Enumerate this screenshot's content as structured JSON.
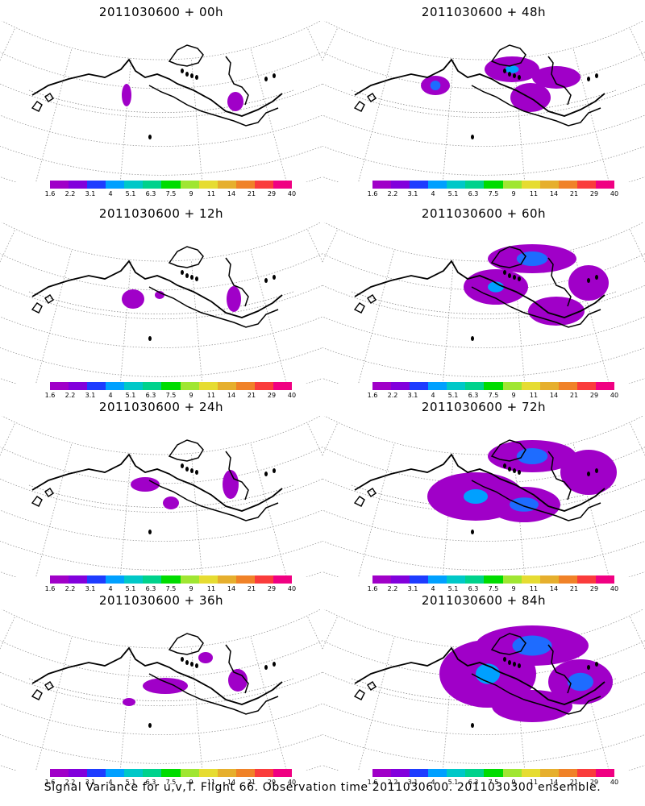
{
  "panels": [
    {
      "title": "2011030600 + 00h",
      "level": 0
    },
    {
      "title": "2011030600 + 48h",
      "level": 4
    },
    {
      "title": "2011030600 + 12h",
      "level": 1
    },
    {
      "title": "2011030600 + 60h",
      "level": 5
    },
    {
      "title": "2011030600 + 24h",
      "level": 2
    },
    {
      "title": "2011030600 + 72h",
      "level": 6
    },
    {
      "title": "2011030600 + 36h",
      "level": 3
    },
    {
      "title": "2011030600 + 84h",
      "level": 7
    }
  ],
  "colorbar": {
    "colors": [
      "#a000c8",
      "#8200dc",
      "#1e3cff",
      "#00a0ff",
      "#00c8c8",
      "#00d28c",
      "#00dc00",
      "#a0e632",
      "#e6dc32",
      "#e6af2d",
      "#f08228",
      "#fa3c3c",
      "#f00082"
    ],
    "labels": [
      "1.6",
      "2.2",
      "3.1",
      "4",
      "5.1",
      "6.3",
      "7.5",
      "9",
      "11",
      "14",
      "21",
      "29",
      "40"
    ]
  },
  "footer": "Signal Variance for u,v,T. Flight 66. Observation time 2011030600. 2011030300 ensemble."
}
